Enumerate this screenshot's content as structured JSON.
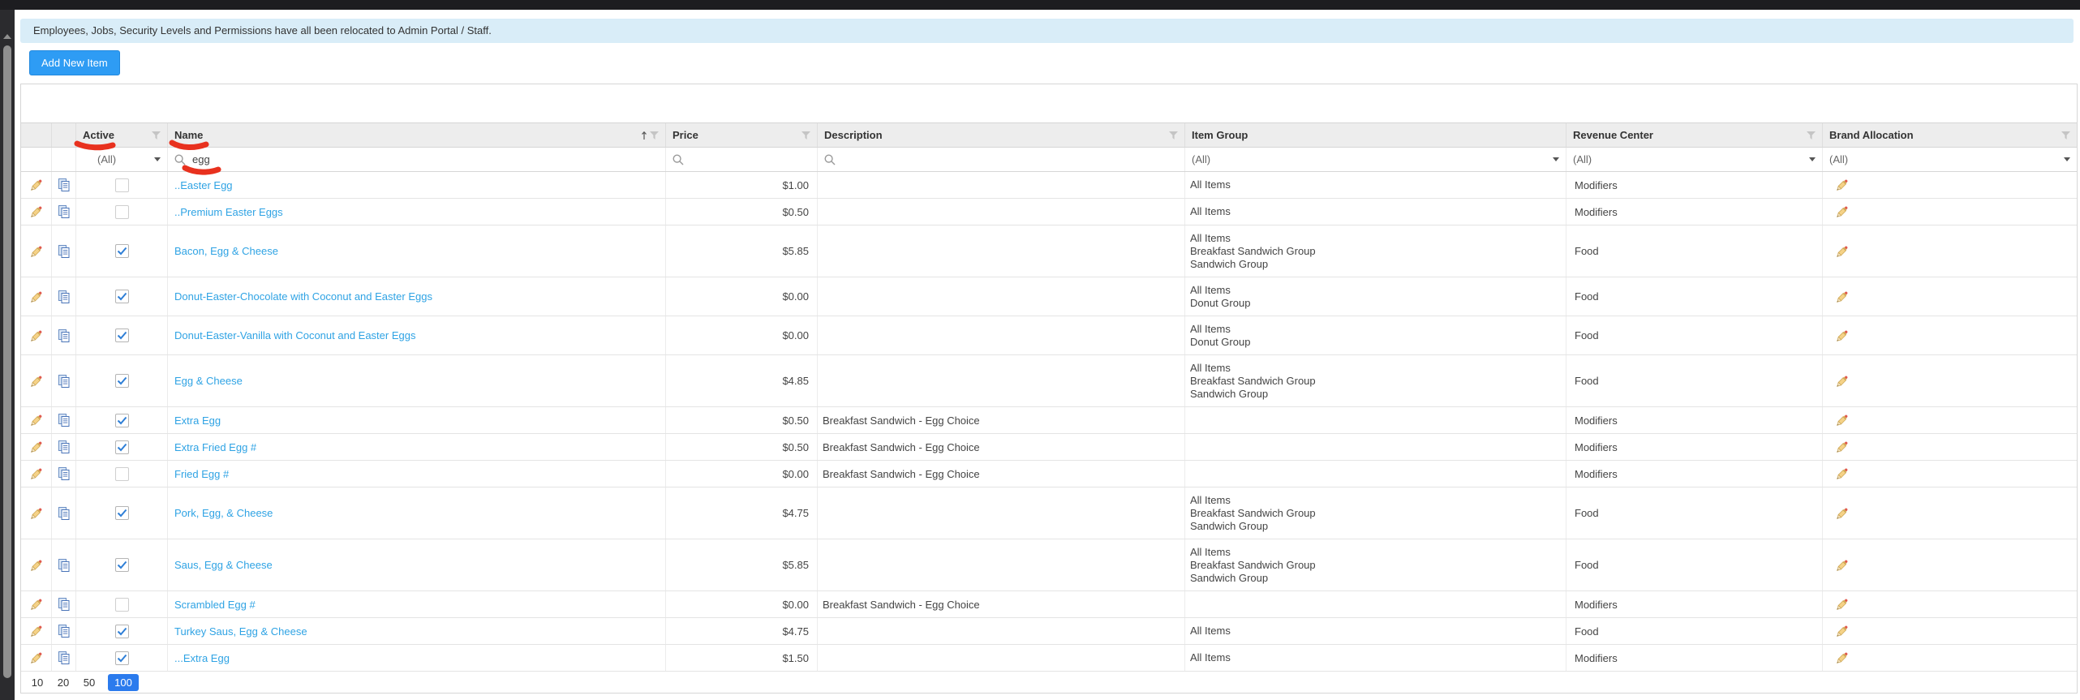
{
  "banner": {
    "text": "Employees, Jobs, Security Levels and Permissions have all been relocated to Admin Portal / Staff."
  },
  "toolbar": {
    "add_button_label": "Add New Item"
  },
  "grid": {
    "columns": [
      {
        "key": "edit",
        "label": "",
        "filter": false,
        "filter_type": "none"
      },
      {
        "key": "copy",
        "label": "",
        "filter": false,
        "filter_type": "none"
      },
      {
        "key": "active",
        "label": "Active",
        "filter": true,
        "filter_type": "select",
        "filter_value": "(All)"
      },
      {
        "key": "name",
        "label": "Name",
        "filter": true,
        "sort": "asc",
        "filter_type": "search",
        "filter_value": "egg"
      },
      {
        "key": "price",
        "label": "Price",
        "filter": true,
        "filter_type": "search",
        "filter_value": ""
      },
      {
        "key": "desc",
        "label": "Description",
        "filter": true,
        "filter_type": "search",
        "filter_value": ""
      },
      {
        "key": "group",
        "label": "Item Group",
        "filter": false,
        "filter_type": "select",
        "filter_value": "(All)"
      },
      {
        "key": "rev",
        "label": "Revenue Center",
        "filter": true,
        "filter_type": "select",
        "filter_value": "(All)"
      },
      {
        "key": "brand",
        "label": "Brand Allocation",
        "filter": true,
        "filter_type": "select",
        "filter_value": "(All)"
      }
    ],
    "rows": [
      {
        "active": false,
        "name": "..Easter Egg",
        "price": "$1.00",
        "description": "",
        "item_group": [
          "All Items"
        ],
        "revenue_center": "Modifiers"
      },
      {
        "active": false,
        "name": "..Premium Easter Eggs",
        "price": "$0.50",
        "description": "",
        "item_group": [
          "All Items"
        ],
        "revenue_center": "Modifiers"
      },
      {
        "active": true,
        "name": "Bacon, Egg & Cheese",
        "price": "$5.85",
        "description": "",
        "item_group": [
          "All Items",
          "Breakfast Sandwich Group",
          "Sandwich Group"
        ],
        "revenue_center": "Food"
      },
      {
        "active": true,
        "name": "Donut-Easter-Chocolate with Coconut and Easter Eggs",
        "price": "$0.00",
        "description": "",
        "item_group": [
          "All Items",
          "Donut Group"
        ],
        "revenue_center": "Food"
      },
      {
        "active": true,
        "name": "Donut-Easter-Vanilla with Coconut and Easter Eggs",
        "price": "$0.00",
        "description": "",
        "item_group": [
          "All Items",
          "Donut Group"
        ],
        "revenue_center": "Food"
      },
      {
        "active": true,
        "name": "Egg & Cheese",
        "price": "$4.85",
        "description": "",
        "item_group": [
          "All Items",
          "Breakfast Sandwich Group",
          "Sandwich Group"
        ],
        "revenue_center": "Food"
      },
      {
        "active": true,
        "name": "Extra Egg",
        "price": "$0.50",
        "description": "Breakfast Sandwich - Egg Choice",
        "item_group": [],
        "revenue_center": "Modifiers"
      },
      {
        "active": true,
        "name": "Extra Fried Egg #",
        "price": "$0.50",
        "description": "Breakfast Sandwich - Egg Choice",
        "item_group": [],
        "revenue_center": "Modifiers"
      },
      {
        "active": false,
        "name": "Fried Egg #",
        "price": "$0.00",
        "description": "Breakfast Sandwich - Egg Choice",
        "item_group": [],
        "revenue_center": "Modifiers"
      },
      {
        "active": true,
        "name": "Pork, Egg, & Cheese",
        "price": "$4.75",
        "description": "",
        "item_group": [
          "All Items",
          "Breakfast Sandwich Group",
          "Sandwich Group"
        ],
        "revenue_center": "Food"
      },
      {
        "active": true,
        "name": "Saus, Egg & Cheese",
        "price": "$5.85",
        "description": "",
        "item_group": [
          "All Items",
          "Breakfast Sandwich Group",
          "Sandwich Group"
        ],
        "revenue_center": "Food"
      },
      {
        "active": false,
        "name": "Scrambled Egg #",
        "price": "$0.00",
        "description": "Breakfast Sandwich - Egg Choice",
        "item_group": [],
        "revenue_center": "Modifiers"
      },
      {
        "active": true,
        "name": "Turkey Saus, Egg & Cheese",
        "price": "$4.75",
        "description": "",
        "item_group": [
          "All Items"
        ],
        "revenue_center": "Food"
      },
      {
        "active": true,
        "name": "...Extra Egg",
        "price": "$1.50",
        "description": "",
        "item_group": [
          "All Items"
        ],
        "revenue_center": "Modifiers"
      }
    ],
    "pager": {
      "options": [
        "10",
        "20",
        "50",
        "100"
      ],
      "selected": "100"
    }
  },
  "icons": {
    "edit": "pencil-icon",
    "copy": "copy-icon",
    "filter": "funnel-icon",
    "search": "magnifier-icon",
    "sort_ascending": "sort-up-icon",
    "dropdown": "caret-down-icon",
    "scroll_up": "scroll-up-arrow-icon"
  },
  "colors": {
    "accent_blue": "#2e9cf4",
    "link_blue": "#2fa3e4",
    "pager_active_blue": "#2b7bed",
    "banner_bg": "#d9edf8",
    "annotation_red": "#e8311e",
    "topbar_black": "#1d1d20"
  },
  "annotations": [
    {
      "name": "underline-active-header"
    },
    {
      "name": "underline-name-header"
    },
    {
      "name": "underline-egg-query"
    }
  ]
}
